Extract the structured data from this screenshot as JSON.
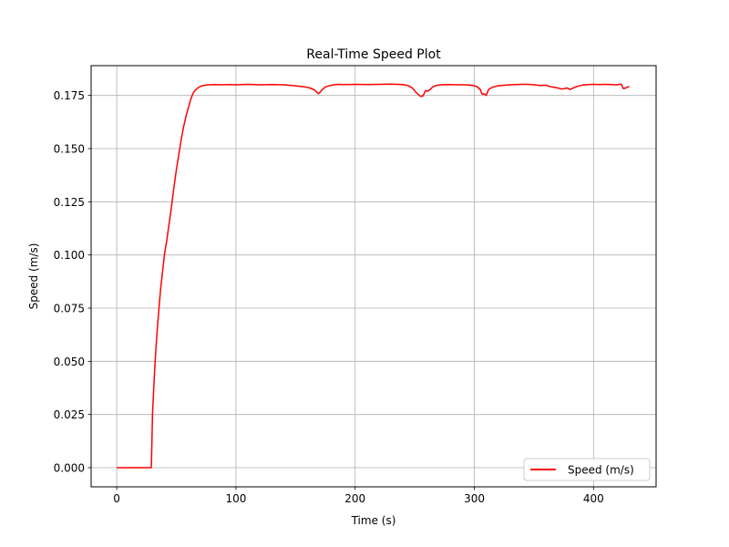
{
  "chart_data": {
    "type": "line",
    "title": "Real-Time Speed Plot",
    "xlabel": "Time (s)",
    "ylabel": "Speed (m/s)",
    "xlim": [
      -21.5,
      452.5
    ],
    "ylim": [
      -0.009,
      0.189
    ],
    "xticks": [
      0,
      100,
      200,
      300,
      400
    ],
    "yticks": [
      0.0,
      0.025,
      0.05,
      0.075,
      0.1,
      0.125,
      0.15,
      0.175
    ],
    "ytick_labels": [
      "0.000",
      "0.025",
      "0.050",
      "0.075",
      "0.100",
      "0.125",
      "0.150",
      "0.175"
    ],
    "xtick_labels": [
      "0",
      "100",
      "200",
      "300",
      "400"
    ],
    "grid": true,
    "legend_position": "lower-right",
    "series": [
      {
        "name": "Speed (m/s)",
        "color": "#ff0000",
        "x": [
          0,
          29,
          29.5,
          30,
          31,
          32,
          33,
          34,
          35,
          36,
          37,
          38,
          39,
          40,
          42,
          44,
          46,
          48,
          50,
          52,
          54,
          56,
          58,
          60,
          62,
          64,
          66,
          68,
          70,
          72,
          75,
          78,
          82,
          88,
          95,
          100,
          110,
          120,
          130,
          140,
          150,
          158,
          162,
          165,
          167,
          169,
          170,
          172,
          175,
          178,
          182,
          186,
          190,
          200,
          210,
          220,
          230,
          240,
          245,
          248,
          251,
          253,
          255,
          257,
          258,
          259,
          261,
          263,
          265,
          268,
          272,
          278,
          285,
          292,
          298,
          302,
          305,
          306,
          307,
          308,
          310,
          311,
          312,
          314,
          316,
          320,
          325,
          330,
          335,
          340,
          345,
          350,
          355,
          360,
          365,
          370,
          372,
          374,
          376,
          378,
          380,
          382,
          384,
          388,
          392,
          396,
          400,
          405,
          410,
          415,
          420,
          423,
          424,
          425,
          427,
          428,
          430
        ],
        "values": [
          0,
          0,
          0.012,
          0.025,
          0.037,
          0.048,
          0.057,
          0.065,
          0.072,
          0.079,
          0.085,
          0.09,
          0.095,
          0.1,
          0.107,
          0.115,
          0.123,
          0.132,
          0.14,
          0.147,
          0.154,
          0.16,
          0.165,
          0.169,
          0.173,
          0.176,
          0.1775,
          0.1785,
          0.1792,
          0.1796,
          0.1799,
          0.18,
          0.1801,
          0.18,
          0.1801,
          0.18,
          0.1802,
          0.18,
          0.1801,
          0.18,
          0.1795,
          0.179,
          0.1785,
          0.1778,
          0.177,
          0.1758,
          0.1762,
          0.1775,
          0.179,
          0.1795,
          0.18,
          0.1802,
          0.1801,
          0.1802,
          0.1801,
          0.1802,
          0.1803,
          0.1801,
          0.1795,
          0.1785,
          0.1765,
          0.1755,
          0.1745,
          0.1748,
          0.176,
          0.1772,
          0.177,
          0.1778,
          0.179,
          0.1797,
          0.18,
          0.1801,
          0.18,
          0.18,
          0.1798,
          0.1792,
          0.1778,
          0.1762,
          0.1755,
          0.1758,
          0.175,
          0.1765,
          0.1778,
          0.1785,
          0.179,
          0.1795,
          0.1798,
          0.18,
          0.1801,
          0.1802,
          0.1802,
          0.18,
          0.1797,
          0.1798,
          0.179,
          0.1785,
          0.1782,
          0.178,
          0.1783,
          0.1785,
          0.1778,
          0.1782,
          0.1788,
          0.1795,
          0.18,
          0.1801,
          0.1802,
          0.1801,
          0.1802,
          0.1801,
          0.18,
          0.1803,
          0.1795,
          0.1782,
          0.1785,
          0.1788,
          0.1792
        ]
      }
    ]
  }
}
